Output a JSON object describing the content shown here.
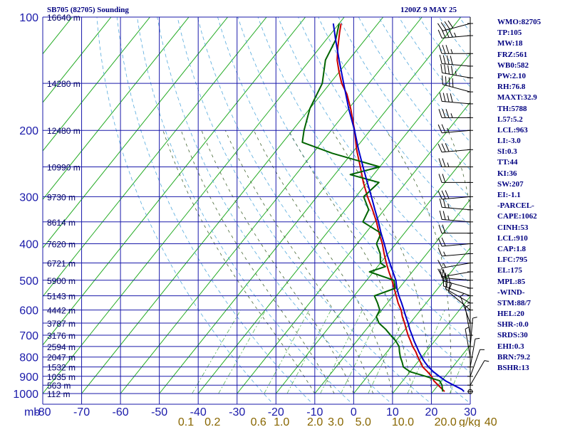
{
  "chart_data": {
    "type": "line",
    "title": "SB705 (82705) Sounding",
    "timestamp": "1200Z  9 MAY 25",
    "x_unit_label": "mb",
    "mixing_ratio_unit": "g/kg",
    "xlim": [
      -80,
      30
    ],
    "pressure_levels": [
      100,
      200,
      300,
      400,
      500,
      600,
      700,
      800,
      900,
      1000
    ],
    "pressure_grid": [
      100,
      150,
      200,
      250,
      300,
      350,
      400,
      450,
      500,
      550,
      600,
      650,
      700,
      750,
      800,
      850,
      900,
      950,
      1000
    ],
    "height_labels": [
      {
        "p": 100,
        "label": "16640 m"
      },
      {
        "p": 150,
        "label": "14280 m"
      },
      {
        "p": 200,
        "label": "12480 m"
      },
      {
        "p": 250,
        "label": "10990 m"
      },
      {
        "p": 300,
        "label": "9730 m"
      },
      {
        "p": 350,
        "label": "8614 m"
      },
      {
        "p": 400,
        "label": "7620 m"
      },
      {
        "p": 450,
        "label": "6721 m"
      },
      {
        "p": 500,
        "label": "5900 m"
      },
      {
        "p": 550,
        "label": "5143 m"
      },
      {
        "p": 600,
        "label": "4442 m"
      },
      {
        "p": 650,
        "label": "3787 m"
      },
      {
        "p": 700,
        "label": "3176 m"
      },
      {
        "p": 750,
        "label": "2594 m"
      },
      {
        "p": 800,
        "label": "2047 m"
      },
      {
        "p": 850,
        "label": "1532 m"
      },
      {
        "p": 900,
        "label": "1035 m"
      },
      {
        "p": 950,
        "label": "563 m"
      },
      {
        "p": 1000,
        "label": "112 m"
      }
    ],
    "temperature_ticks": [
      -80,
      -70,
      -60,
      -50,
      -40,
      -30,
      -20,
      -10,
      0,
      10,
      20,
      30
    ],
    "mixing_ratio_labels": [
      {
        "w": "0.1",
        "x": 0.1
      },
      {
        "w": "0.2",
        "x": 0.2
      },
      {
        "w": "0.6",
        "x": 0.6
      },
      {
        "w": "1.0",
        "x": 1.0
      },
      {
        "w": "2.0",
        "x": 2.0
      },
      {
        "w": "3.0",
        "x": 3.0
      },
      {
        "w": "5.0",
        "x": 5.0
      },
      {
        "w": "10.0",
        "x": 10.0
      },
      {
        "w": "20.0",
        "x": 20.0
      },
      {
        "w": "40",
        "x": 40
      }
    ],
    "series": [
      {
        "key": "temperature",
        "color": "#cc0000",
        "points": [
          [
            988,
            23
          ],
          [
            975,
            22
          ],
          [
            950,
            20
          ],
          [
            925,
            18
          ],
          [
            900,
            16.5
          ],
          [
            875,
            14.5
          ],
          [
            850,
            12.3
          ],
          [
            825,
            10.7
          ],
          [
            800,
            9
          ],
          [
            775,
            7.4
          ],
          [
            750,
            5.5
          ],
          [
            725,
            3.8
          ],
          [
            700,
            2
          ],
          [
            675,
            0.3
          ],
          [
            650,
            -1.4
          ],
          [
            625,
            -3.3
          ],
          [
            600,
            -5
          ],
          [
            575,
            -7.2
          ],
          [
            550,
            -9.2
          ],
          [
            525,
            -11.3
          ],
          [
            500,
            -13.5
          ],
          [
            475,
            -16
          ],
          [
            450,
            -18.5
          ],
          [
            425,
            -21
          ],
          [
            400,
            -23.5
          ],
          [
            375,
            -26.5
          ],
          [
            350,
            -29.5
          ],
          [
            325,
            -33
          ],
          [
            300,
            -37
          ],
          [
            275,
            -41
          ],
          [
            250,
            -45
          ],
          [
            225,
            -49.5
          ],
          [
            200,
            -54
          ],
          [
            175,
            -59.5
          ],
          [
            160,
            -63.5
          ],
          [
            150,
            -67
          ],
          [
            140,
            -70
          ],
          [
            130,
            -73
          ],
          [
            120,
            -75.5
          ],
          [
            110,
            -78
          ],
          [
            104,
            -79.5
          ]
        ]
      },
      {
        "key": "dewpoint",
        "color": "#006400",
        "points": [
          [
            988,
            22.5
          ],
          [
            975,
            22
          ],
          [
            950,
            21
          ],
          [
            925,
            19.5
          ],
          [
            900,
            15
          ],
          [
            875,
            10
          ],
          [
            850,
            7.3
          ],
          [
            825,
            6
          ],
          [
            800,
            4.5
          ],
          [
            775,
            3.2
          ],
          [
            750,
            2
          ],
          [
            725,
            0
          ],
          [
            700,
            -2.5
          ],
          [
            675,
            -5
          ],
          [
            650,
            -8
          ],
          [
            625,
            -10
          ],
          [
            600,
            -10.5
          ],
          [
            575,
            -12.5
          ],
          [
            550,
            -14.8
          ],
          [
            525,
            -11
          ],
          [
            500,
            -13
          ],
          [
            475,
            -21
          ],
          [
            460,
            -18
          ],
          [
            450,
            -20
          ],
          [
            425,
            -22
          ],
          [
            400,
            -25
          ],
          [
            375,
            -26
          ],
          [
            350,
            -33
          ],
          [
            325,
            -34
          ],
          [
            300,
            -38
          ],
          [
            275,
            -37
          ],
          [
            262,
            -46
          ],
          [
            250,
            -40
          ],
          [
            230,
            -55
          ],
          [
            215,
            -65
          ],
          [
            200,
            -67
          ],
          [
            175,
            -70
          ],
          [
            150,
            -72
          ],
          [
            130,
            -76
          ],
          [
            115,
            -77.5
          ],
          [
            104,
            -80
          ]
        ]
      },
      {
        "key": "parcel",
        "color": "#0000cc",
        "points": [
          [
            988,
            28
          ],
          [
            975,
            27
          ],
          [
            950,
            24
          ],
          [
            925,
            21
          ],
          [
            900,
            18.5
          ],
          [
            875,
            16
          ],
          [
            850,
            13.8
          ],
          [
            825,
            11.8
          ],
          [
            800,
            10
          ],
          [
            775,
            8.2
          ],
          [
            750,
            6.5
          ],
          [
            725,
            4.7
          ],
          [
            700,
            3
          ],
          [
            675,
            1.2
          ],
          [
            650,
            -0.5
          ],
          [
            625,
            -2.4
          ],
          [
            600,
            -4.3
          ],
          [
            575,
            -6.3
          ],
          [
            550,
            -8.5
          ],
          [
            525,
            -10.6
          ],
          [
            500,
            -12.5
          ],
          [
            475,
            -15
          ],
          [
            450,
            -17.6
          ],
          [
            425,
            -20.3
          ],
          [
            400,
            -23
          ],
          [
            375,
            -26
          ],
          [
            350,
            -29
          ],
          [
            325,
            -32.4
          ],
          [
            300,
            -36
          ],
          [
            275,
            -40
          ],
          [
            250,
            -44.3
          ],
          [
            225,
            -49
          ],
          [
            200,
            -54
          ],
          [
            175,
            -60
          ],
          [
            150,
            -66.5
          ],
          [
            130,
            -72.5
          ],
          [
            115,
            -77.5
          ],
          [
            104,
            -81.5
          ]
        ]
      }
    ],
    "wind_barbs": [
      {
        "p": 104,
        "dir": 255,
        "kt": 40
      },
      {
        "p": 112,
        "dir": 265,
        "kt": 45
      },
      {
        "p": 125,
        "dir": 270,
        "kt": 35
      },
      {
        "p": 135,
        "dir": 275,
        "kt": 40
      },
      {
        "p": 145,
        "dir": 280,
        "kt": 45
      },
      {
        "p": 158,
        "dir": 285,
        "kt": 40
      },
      {
        "p": 170,
        "dir": 275,
        "kt": 40
      },
      {
        "p": 185,
        "dir": 270,
        "kt": 35
      },
      {
        "p": 200,
        "dir": 265,
        "kt": 25
      },
      {
        "p": 225,
        "dir": 265,
        "kt": 30
      },
      {
        "p": 250,
        "dir": 270,
        "kt": 25
      },
      {
        "p": 275,
        "dir": 270,
        "kt": 20
      },
      {
        "p": 300,
        "dir": 265,
        "kt": 30
      },
      {
        "p": 325,
        "dir": 275,
        "kt": 25
      },
      {
        "p": 350,
        "dir": 275,
        "kt": 25
      },
      {
        "p": 375,
        "dir": 270,
        "kt": 20
      },
      {
        "p": 400,
        "dir": 265,
        "kt": 20
      },
      {
        "p": 425,
        "dir": 265,
        "kt": 15
      },
      {
        "p": 450,
        "dir": 260,
        "kt": 15
      },
      {
        "p": 475,
        "dir": 260,
        "kt": 20
      },
      {
        "p": 500,
        "dir": 275,
        "kt": 25
      },
      {
        "p": 525,
        "dir": 285,
        "kt": 25
      },
      {
        "p": 550,
        "dir": 290,
        "kt": 20
      },
      {
        "p": 575,
        "dir": 300,
        "kt": 20
      },
      {
        "p": 600,
        "dir": 310,
        "kt": 10
      },
      {
        "p": 650,
        "dir": 340,
        "kt": 5
      },
      {
        "p": 700,
        "dir": 350,
        "kt": 5
      },
      {
        "p": 750,
        "dir": 5,
        "kt": 5
      },
      {
        "p": 800,
        "dir": 350,
        "kt": 5
      },
      {
        "p": 850,
        "dir": 10,
        "kt": 5
      },
      {
        "p": 900,
        "dir": 20,
        "kt": 5
      },
      {
        "p": 950,
        "dir": 30,
        "kt": 5
      },
      {
        "p": 988,
        "dir": 0,
        "kt": 0
      }
    ]
  },
  "indices": [
    "WMO:82705",
    "TP:105",
    "MW:18",
    "FRZ:561",
    "WB0:582",
    "PW:2.10",
    "RH:76.8",
    "MAXT:32.9",
    "TH:5788",
    "L57:5.2",
    "LCL:963",
    "LI:-3.0",
    "SI:0.3",
    "TT:44",
    "KI:36",
    "SW:207",
    "EI:-1.1",
    "-PARCEL-",
    "CAPE:1062",
    "CINH:53",
    "LCL:910",
    "CAP:1.8",
    "LFC:795",
    "EL:175",
    "MPL:85",
    "-WIND-",
    "STM:88/7",
    "HEL:20",
    "SHR-:0.0",
    "SRDS:30",
    "EHI:0.3",
    "BRN:79.2",
    "BSHR:13"
  ]
}
